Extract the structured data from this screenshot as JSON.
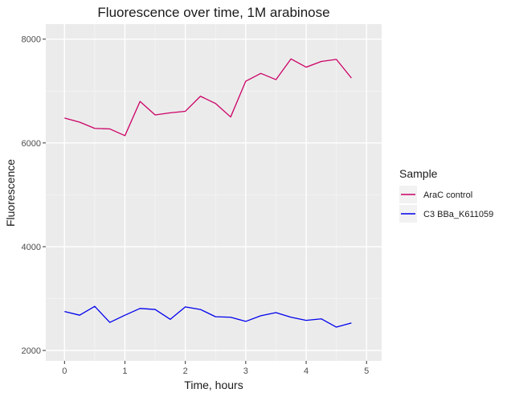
{
  "chart_data": {
    "type": "line",
    "title": "Fluorescence over time, 1M arabinose",
    "xlabel": "Time, hours",
    "ylabel": "Fluorescence",
    "xlim": [
      -0.31,
      5.25
    ],
    "ylim": [
      1800,
      8290
    ],
    "x_ticks": [
      0,
      1,
      2,
      3,
      4,
      5
    ],
    "y_ticks": [
      2000,
      4000,
      6000,
      8000
    ],
    "x_tick_labels": [
      "0",
      "1",
      "2",
      "3",
      "4",
      "5"
    ],
    "y_tick_labels": [
      "2000",
      "4000",
      "6000",
      "8000"
    ],
    "grid": true,
    "legend": {
      "title": "Sample",
      "position": "right"
    },
    "x": [
      0,
      0.25,
      0.5,
      0.75,
      1,
      1.25,
      1.5,
      1.75,
      2,
      2.25,
      2.5,
      2.75,
      3,
      3.25,
      3.5,
      3.75,
      4,
      4.25,
      4.5,
      4.75
    ],
    "series": [
      {
        "name": "AraC control",
        "color": "#cc0066",
        "values": [
          6480,
          6400,
          6280,
          6270,
          6140,
          6800,
          6540,
          6580,
          6610,
          6900,
          6760,
          6500,
          7190,
          7340,
          7220,
          7620,
          7460,
          7570,
          7610,
          7250
        ]
      },
      {
        "name": "C3 BBa_K611059",
        "color": "#0000ee",
        "values": [
          2750,
          2680,
          2850,
          2540,
          2680,
          2810,
          2790,
          2600,
          2840,
          2790,
          2650,
          2640,
          2560,
          2670,
          2730,
          2640,
          2580,
          2610,
          2450,
          2530
        ]
      }
    ]
  }
}
